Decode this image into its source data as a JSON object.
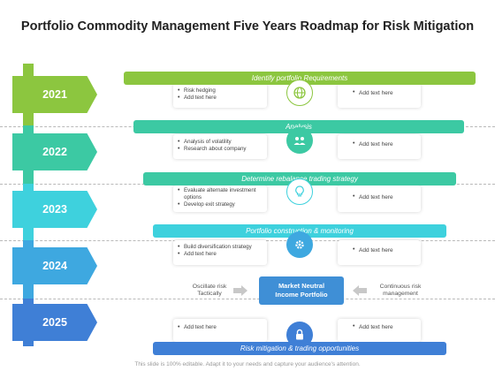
{
  "title": "Portfolio Commodity Management Five Years Roadmap for Risk Mitigation",
  "years": [
    "2021",
    "2022",
    "2023",
    "2024",
    "2025"
  ],
  "colors": {
    "green": "#8cc63f",
    "teal_green": "#3cc9a3",
    "cyan": "#3ed1dd",
    "sky": "#3ea8e0",
    "blue": "#3f7fd6"
  },
  "stages": [
    {
      "label": "Identify portfolio Requirements",
      "bullets": [
        "Risk hedging",
        "Add text here"
      ],
      "right": "Add text here",
      "icon": "globe-icon"
    },
    {
      "label": "Analysis",
      "bullets": [
        "Analysis of volatility",
        "Research about company"
      ],
      "right": "Add text here",
      "icon": "people-icon"
    },
    {
      "label": "Determine rebalance trading strategy",
      "bullets": [
        "Evaluate alternate investment options",
        "Develop exit strategy"
      ],
      "right": "Add text here",
      "icon": "lightbulb-icon"
    },
    {
      "label": "Portfolio construction & monitoring",
      "bullets": [
        "Build diversification strategy",
        "Add text here"
      ],
      "right": "Add text here",
      "icon": "gear-icon"
    },
    {
      "label": "Risk mitigation & trading opportunities",
      "bullets": [
        "Add text here"
      ],
      "right": "Add text here",
      "icon": "lock-icon"
    }
  ],
  "center": {
    "line1": "Market Neutral",
    "line2": "Income Portfolio",
    "left_line1": "Oscillate risk",
    "left_line2": "Tactically",
    "right_line1": "Continuous risk",
    "right_line2": "management"
  },
  "footer": "This slide is 100% editable. Adapt it to your needs and capture your audience's attention."
}
